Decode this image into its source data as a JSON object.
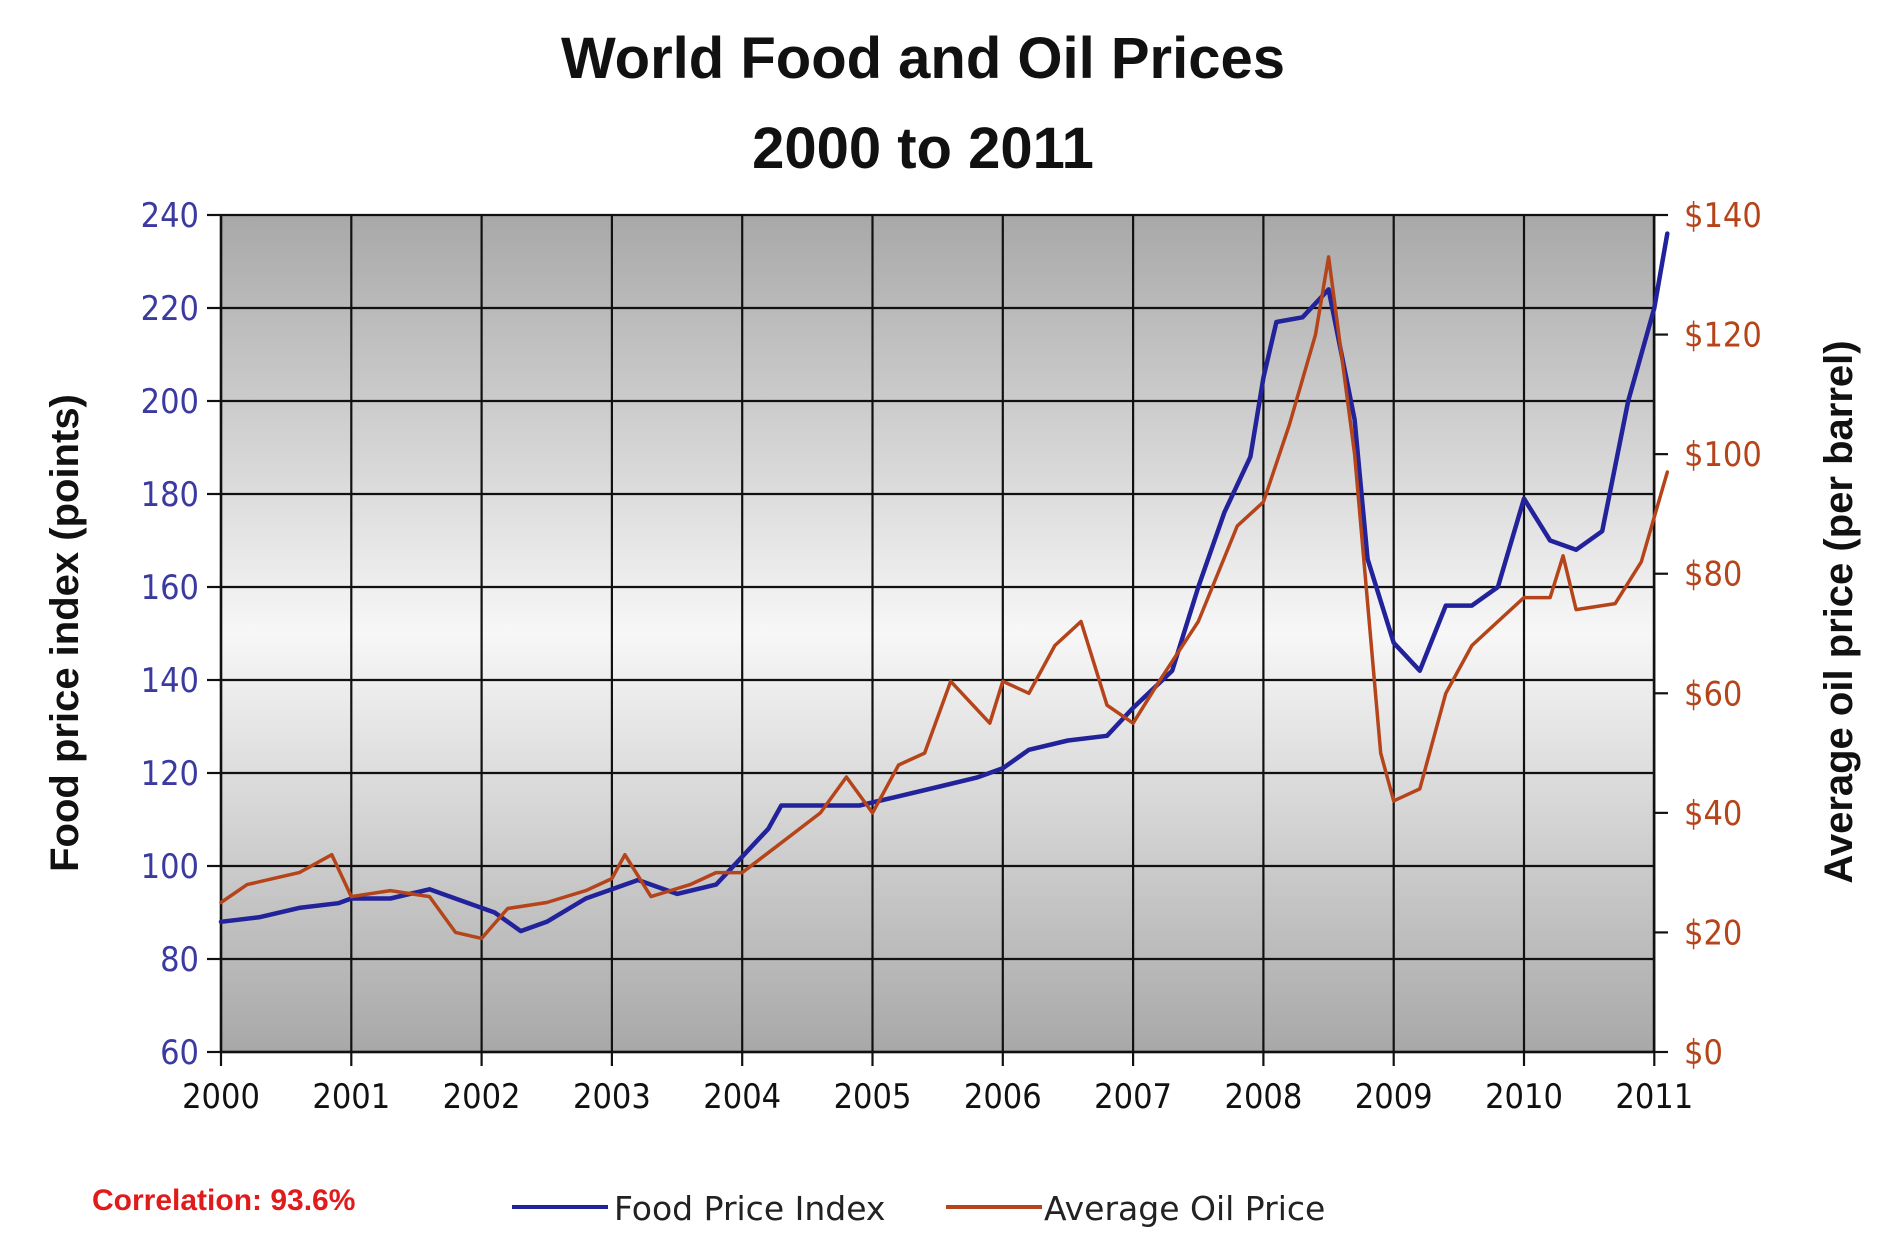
{
  "chart_data": {
    "type": "line",
    "title": "World Food and Oil Prices",
    "subtitle": "2000 to 2011",
    "xlabel": "",
    "ylabel_left": "Food price index (points)",
    "ylabel_right": "Average oil price (per barrel)",
    "x_ticks": [
      "2000",
      "2001",
      "2002",
      "2003",
      "2004",
      "2005",
      "2006",
      "2007",
      "2008",
      "2009",
      "2010",
      "2011"
    ],
    "xlim": [
      2000,
      2011.2
    ],
    "ylim_left": [
      60,
      240
    ],
    "ylim_right": [
      0,
      140
    ],
    "y_ticks_left": [
      "60",
      "80",
      "100",
      "120",
      "140",
      "160",
      "180",
      "200",
      "220",
      "240"
    ],
    "y_ticks_right": [
      "$0",
      "$20",
      "$40",
      "$60",
      "$80",
      "$100",
      "$120",
      "$140"
    ],
    "grid": true,
    "legend_position": "bottom",
    "annotation": "Correlation: 93.6%",
    "colors": {
      "food": "#22229a",
      "oil": "#b5441a",
      "annotation": "#e01b1b",
      "plot_edge": "#a8a8a8",
      "plot_center": "#f7f7f7"
    },
    "series": [
      {
        "name": "Food Price Index",
        "axis": "left",
        "points": [
          [
            2000.0,
            88
          ],
          [
            2000.3,
            89
          ],
          [
            2000.6,
            91
          ],
          [
            2000.9,
            92
          ],
          [
            2001.0,
            93
          ],
          [
            2001.3,
            93
          ],
          [
            2001.6,
            95
          ],
          [
            2001.9,
            92
          ],
          [
            2002.1,
            90
          ],
          [
            2002.3,
            86
          ],
          [
            2002.5,
            88
          ],
          [
            2002.8,
            93
          ],
          [
            2003.0,
            95
          ],
          [
            2003.2,
            97
          ],
          [
            2003.5,
            94
          ],
          [
            2003.8,
            96
          ],
          [
            2004.0,
            102
          ],
          [
            2004.2,
            108
          ],
          [
            2004.3,
            113
          ],
          [
            2004.6,
            113
          ],
          [
            2004.9,
            113
          ],
          [
            2005.2,
            115
          ],
          [
            2005.5,
            117
          ],
          [
            2005.8,
            119
          ],
          [
            2006.0,
            121
          ],
          [
            2006.2,
            125
          ],
          [
            2006.5,
            127
          ],
          [
            2006.8,
            128
          ],
          [
            2007.0,
            134
          ],
          [
            2007.3,
            142
          ],
          [
            2007.5,
            160
          ],
          [
            2007.7,
            176
          ],
          [
            2007.9,
            188
          ],
          [
            2008.0,
            205
          ],
          [
            2008.1,
            217
          ],
          [
            2008.3,
            218
          ],
          [
            2008.5,
            224
          ],
          [
            2008.7,
            196
          ],
          [
            2008.8,
            166
          ],
          [
            2009.0,
            148
          ],
          [
            2009.2,
            142
          ],
          [
            2009.4,
            156
          ],
          [
            2009.6,
            156
          ],
          [
            2009.8,
            160
          ],
          [
            2010.0,
            179
          ],
          [
            2010.2,
            170
          ],
          [
            2010.4,
            168
          ],
          [
            2010.6,
            172
          ],
          [
            2010.8,
            200
          ],
          [
            2011.0,
            220
          ],
          [
            2011.1,
            236
          ]
        ]
      },
      {
        "name": "Average Oil Price",
        "axis": "right",
        "points": [
          [
            2000.0,
            25
          ],
          [
            2000.2,
            28
          ],
          [
            2000.4,
            29
          ],
          [
            2000.6,
            30
          ],
          [
            2000.85,
            33
          ],
          [
            2001.0,
            26
          ],
          [
            2001.3,
            27
          ],
          [
            2001.6,
            26
          ],
          [
            2001.8,
            20
          ],
          [
            2002.0,
            19
          ],
          [
            2002.2,
            24
          ],
          [
            2002.5,
            25
          ],
          [
            2002.8,
            27
          ],
          [
            2003.0,
            29
          ],
          [
            2003.1,
            33
          ],
          [
            2003.3,
            26
          ],
          [
            2003.6,
            28
          ],
          [
            2003.8,
            30
          ],
          [
            2004.0,
            30
          ],
          [
            2004.3,
            35
          ],
          [
            2004.6,
            40
          ],
          [
            2004.8,
            46
          ],
          [
            2005.0,
            40
          ],
          [
            2005.2,
            48
          ],
          [
            2005.4,
            50
          ],
          [
            2005.6,
            62
          ],
          [
            2005.9,
            55
          ],
          [
            2006.0,
            62
          ],
          [
            2006.2,
            60
          ],
          [
            2006.4,
            68
          ],
          [
            2006.6,
            72
          ],
          [
            2006.8,
            58
          ],
          [
            2007.0,
            55
          ],
          [
            2007.2,
            62
          ],
          [
            2007.5,
            72
          ],
          [
            2007.8,
            88
          ],
          [
            2008.0,
            92
          ],
          [
            2008.2,
            105
          ],
          [
            2008.4,
            120
          ],
          [
            2008.5,
            133
          ],
          [
            2008.7,
            100
          ],
          [
            2008.9,
            50
          ],
          [
            2009.0,
            42
          ],
          [
            2009.2,
            44
          ],
          [
            2009.4,
            60
          ],
          [
            2009.6,
            68
          ],
          [
            2009.8,
            72
          ],
          [
            2010.0,
            76
          ],
          [
            2010.2,
            76
          ],
          [
            2010.3,
            83
          ],
          [
            2010.4,
            74
          ],
          [
            2010.7,
            75
          ],
          [
            2010.9,
            82
          ],
          [
            2011.1,
            97
          ]
        ]
      }
    ]
  }
}
